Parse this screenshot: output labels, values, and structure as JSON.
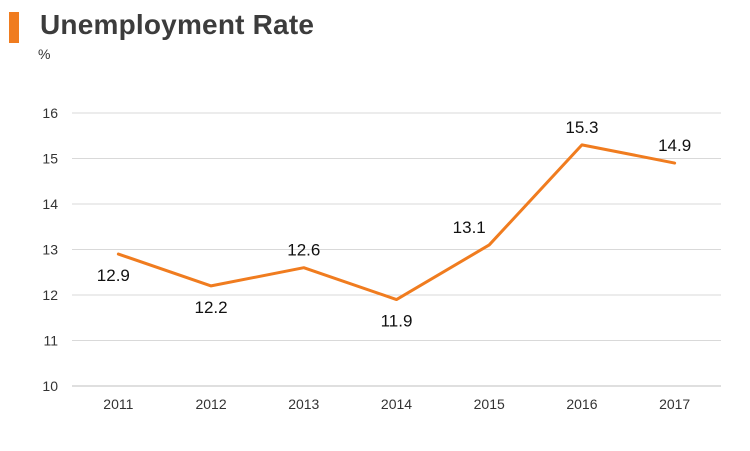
{
  "chart_data": {
    "type": "line",
    "title": "Unemployment Rate",
    "ylabel": "%",
    "xlabel": "",
    "categories": [
      "2011",
      "2012",
      "2013",
      "2014",
      "2015",
      "2016",
      "2017"
    ],
    "series": [
      {
        "values": [
          12.9,
          12.2,
          12.6,
          11.9,
          13.1,
          15.3,
          14.9
        ],
        "color": "#f07c1f"
      }
    ],
    "data_labels": [
      "12.9",
      "12.2",
      "12.6",
      "11.9",
      "13.1",
      "15.3",
      "14.9"
    ],
    "ylim": [
      10,
      16
    ],
    "yticks": [
      "10",
      "11",
      "12",
      "13",
      "14",
      "15",
      "16"
    ],
    "grid": true,
    "legend": "none",
    "accent_color": "#f07c1f",
    "grid_color": "#d9d9d9"
  }
}
